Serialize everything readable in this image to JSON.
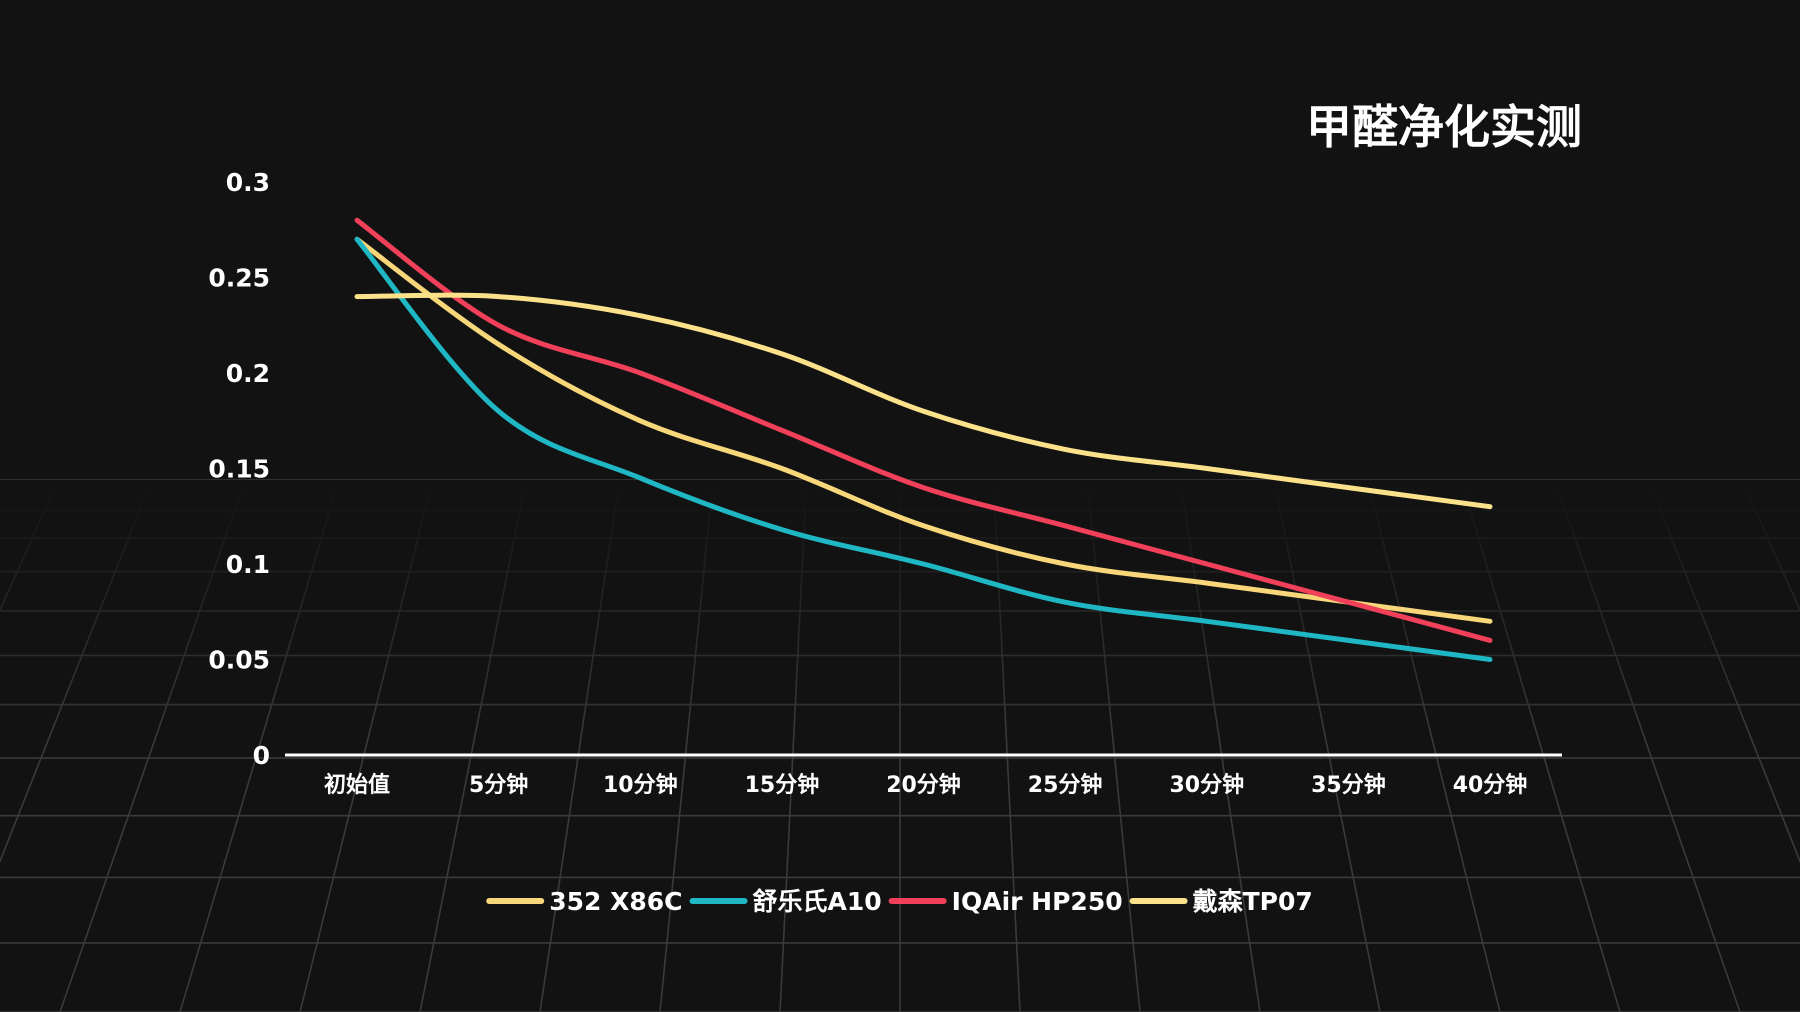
{
  "chart_data": {
    "type": "line",
    "title": "甲醛净化实测",
    "xlabel": "",
    "ylabel": "",
    "categories": [
      "初始值",
      "5分钟",
      "10分钟",
      "15分钟",
      "20分钟",
      "25分钟",
      "30分钟",
      "35分钟",
      "40分钟"
    ],
    "y_ticks": [
      "0",
      "0.05",
      "0.1",
      "0.15",
      "0.2",
      "0.25",
      "0.3"
    ],
    "ylim": [
      0,
      0.3
    ],
    "grid": "perspective-floor",
    "legend_position": "bottom-center",
    "series": [
      {
        "name": "352 X86C",
        "color": "#f7d77a",
        "values": [
          0.27,
          0.215,
          0.175,
          0.15,
          0.12,
          0.1,
          0.09,
          0.08,
          0.07
        ]
      },
      {
        "name": "舒乐氏A10",
        "color": "#1fb7c4",
        "values": [
          0.27,
          0.18,
          0.145,
          0.118,
          0.1,
          0.08,
          0.07,
          0.06,
          0.05
        ]
      },
      {
        "name": "IQAir HP250",
        "color": "#f0405a",
        "values": [
          0.28,
          0.225,
          0.2,
          0.17,
          0.14,
          0.12,
          0.1,
          0.08,
          0.06
        ]
      },
      {
        "name": "戴森TP07",
        "color": "#fbe28a",
        "values": [
          0.24,
          0.24,
          0.23,
          0.21,
          0.18,
          0.16,
          0.15,
          0.14,
          0.13
        ]
      }
    ]
  }
}
